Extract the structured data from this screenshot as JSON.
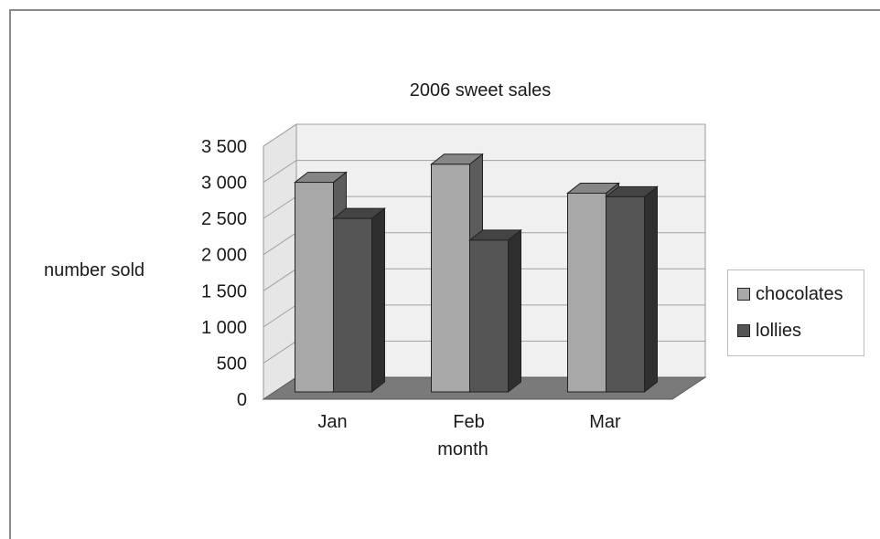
{
  "chart_data": {
    "type": "bar",
    "title": "2006 sweet sales",
    "xlabel": "month",
    "ylabel": "number sold",
    "categories": [
      "Jan",
      "Feb",
      "Mar"
    ],
    "ylim": [
      0,
      3500
    ],
    "yticks": [
      0,
      500,
      1000,
      1500,
      2000,
      2500,
      3000,
      3500
    ],
    "ytick_labels": [
      "0",
      "500",
      "1 000",
      "1 500",
      "2 000",
      "2 500",
      "3 000",
      "3 500"
    ],
    "grid": true,
    "legend_position": "right",
    "series": [
      {
        "name": "chocolates",
        "values": [
          3000,
          3250,
          2850
        ],
        "color": "#a8a8a8"
      },
      {
        "name": "lollies",
        "values": [
          2500,
          2200,
          2800
        ],
        "color": "#555555"
      }
    ]
  }
}
